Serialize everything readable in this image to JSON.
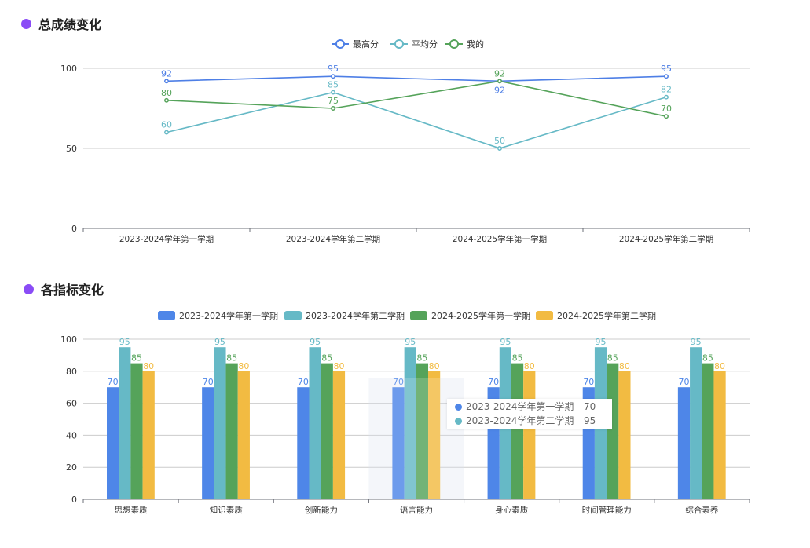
{
  "section1": {
    "title": "总成绩变化"
  },
  "section2": {
    "title": "各指标变化"
  },
  "chart_data": [
    {
      "type": "line",
      "categories": [
        "2023-2024学年第一学期",
        "2023-2024学年第二学期",
        "2024-2025学年第一学期",
        "2024-2025学年第二学期"
      ],
      "ylim": [
        0,
        100
      ],
      "yticks": [
        0,
        50,
        100
      ],
      "grid": true,
      "legend": "top-center",
      "series": [
        {
          "name": "最高分",
          "color": "#4e7fe6",
          "values": [
            92,
            95,
            92,
            95
          ]
        },
        {
          "name": "平均分",
          "color": "#66b9c6",
          "values": [
            60,
            85,
            50,
            82
          ]
        },
        {
          "name": "我的",
          "color": "#55a35a",
          "values": [
            80,
            75,
            92,
            70
          ]
        }
      ]
    },
    {
      "type": "bar",
      "categories": [
        "思想素质",
        "知识素质",
        "创新能力",
        "语言能力",
        "身心素质",
        "时间管理能力",
        "综合素养"
      ],
      "ylim": [
        0,
        100
      ],
      "yticks": [
        0,
        20,
        40,
        60,
        80,
        100
      ],
      "grid": true,
      "legend": "top-center",
      "series": [
        {
          "name": "2023-2024学年第一学期",
          "color": "#4e86e8",
          "values": [
            70,
            70,
            70,
            70,
            70,
            70,
            70
          ]
        },
        {
          "name": "2023-2024学年第二学期",
          "color": "#66b9c6",
          "values": [
            95,
            95,
            95,
            95,
            95,
            95,
            95
          ]
        },
        {
          "name": "2024-2025学年第一学期",
          "color": "#55a35a",
          "values": [
            85,
            85,
            85,
            85,
            85,
            85,
            85
          ]
        },
        {
          "name": "2024-2025学年第二学期",
          "color": "#f2bb42",
          "values": [
            80,
            80,
            80,
            80,
            80,
            80,
            80
          ]
        }
      ]
    }
  ],
  "tooltip": {
    "rows": [
      {
        "label": "2023-2024学年第一学期",
        "value": "70",
        "color": "#4e86e8"
      },
      {
        "label": "2023-2024学年第二学期",
        "value": "95",
        "color": "#66b9c6"
      }
    ]
  }
}
